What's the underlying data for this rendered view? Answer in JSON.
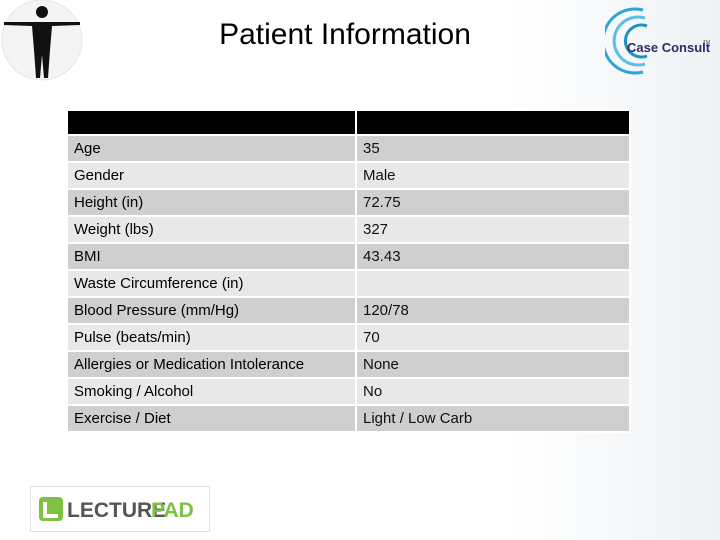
{
  "header": {
    "title": "Patient Information"
  },
  "logos": {
    "case_consult": "Case Consult",
    "trademark": "TM",
    "lecture": "LECTURE",
    "pad": "PAD"
  },
  "table": {
    "rows": [
      [
        "Age",
        "35"
      ],
      [
        "Gender",
        "Male"
      ],
      [
        "Height (in)",
        "72.75"
      ],
      [
        "Weight (lbs)",
        "327"
      ],
      [
        "BMI",
        "43.43"
      ],
      [
        "Waste Circumference (in)",
        null
      ],
      [
        "Blood Pressure (mm/Hg)",
        "120/78"
      ],
      [
        "Pulse (beats/min)",
        "70"
      ],
      [
        "Allergies or Medication Intolerance",
        "None"
      ],
      [
        "Smoking / Alcohol",
        "No"
      ],
      [
        "Exercise / Diet",
        "Light / Low Carb"
      ]
    ]
  }
}
